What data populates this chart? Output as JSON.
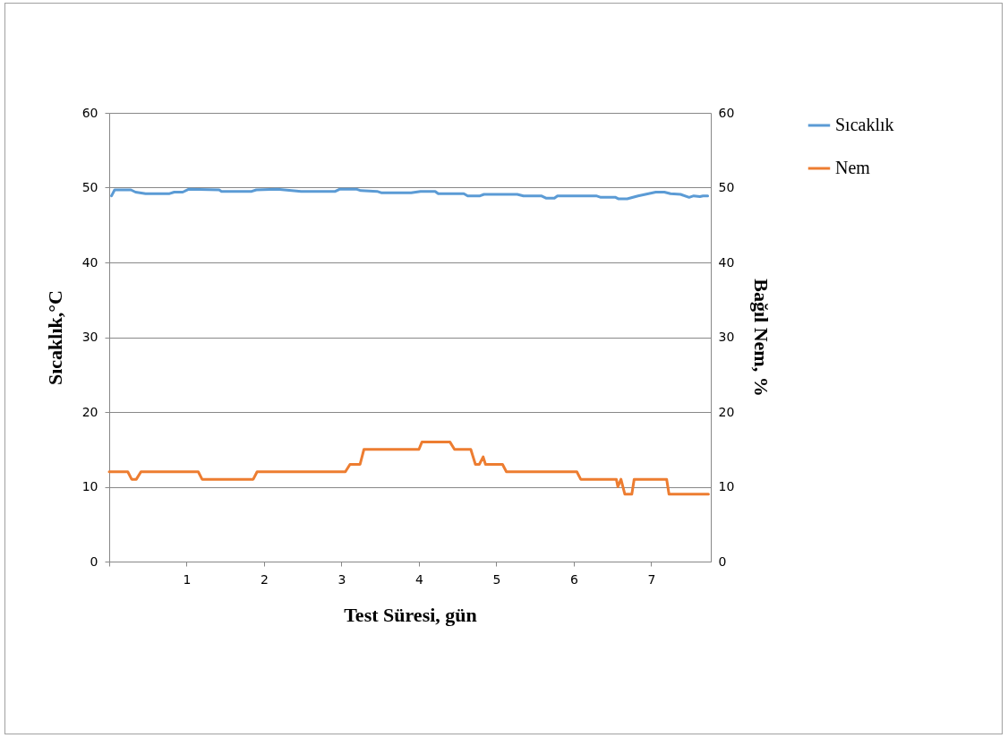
{
  "chart_data": {
    "type": "line",
    "xlabel": "Test Süresi, gün",
    "ylabel": "Sıcaklık,°C",
    "y2label": "Bağıl Nem, %",
    "xlim": [
      0,
      7.77
    ],
    "xticks": [
      {
        "value": 0,
        "label": null
      },
      1,
      2,
      3,
      4,
      5,
      6,
      7
    ],
    "ylim": [
      0,
      60
    ],
    "yticks": [
      0,
      10,
      20,
      30,
      40,
      50,
      60
    ],
    "y2lim": [
      0,
      60
    ],
    "y2ticks": [
      0,
      10,
      20,
      30,
      40,
      50,
      60
    ],
    "grid": "y",
    "legend": "right",
    "line_style": "solid",
    "marker": "none",
    "series": [
      {
        "name": "Sıcaklık",
        "color": "#5b9bd5",
        "x": [
          0.03,
          0.07,
          0.28,
          0.34,
          0.47,
          0.78,
          0.84,
          0.95,
          1.03,
          1.42,
          1.45,
          1.84,
          1.9,
          2.17,
          2.48,
          2.92,
          2.98,
          3.19,
          3.25,
          3.46,
          3.52,
          3.9,
          4.02,
          4.21,
          4.25,
          4.58,
          4.63,
          4.79,
          4.84,
          5.27,
          5.35,
          5.58,
          5.64,
          5.75,
          5.79,
          6.29,
          6.35,
          6.54,
          6.58,
          6.69,
          6.83,
          7.06,
          7.17,
          7.25,
          7.38,
          7.49,
          7.55,
          7.63,
          7.67,
          7.73
        ],
        "values": [
          48.9,
          49.7,
          49.7,
          49.4,
          49.2,
          49.2,
          49.4,
          49.4,
          49.8,
          49.7,
          49.5,
          49.5,
          49.7,
          49.8,
          49.5,
          49.5,
          49.8,
          49.8,
          49.6,
          49.5,
          49.3,
          49.3,
          49.5,
          49.5,
          49.2,
          49.2,
          48.9,
          48.9,
          49.1,
          49.1,
          48.9,
          48.9,
          48.6,
          48.6,
          48.9,
          48.9,
          48.7,
          48.7,
          48.5,
          48.5,
          48.9,
          49.4,
          49.4,
          49.2,
          49.1,
          48.7,
          48.9,
          48.8,
          48.9,
          48.9
        ]
      },
      {
        "name": "Nem",
        "color": "#ed7d31",
        "axis": "y2",
        "x": [
          0,
          0.24,
          0.29,
          0.35,
          0.41,
          1.15,
          1.2,
          1.86,
          1.91,
          3.05,
          3.11,
          3.24,
          3.29,
          4.0,
          4.04,
          4.4,
          4.46,
          4.67,
          4.73,
          4.78,
          4.83,
          4.86,
          5.08,
          5.13,
          6.04,
          6.09,
          6.55,
          6.57,
          6.61,
          6.66,
          6.75,
          6.78,
          7.2,
          7.23,
          7.74
        ],
        "values": [
          12,
          12,
          11,
          11,
          12,
          12,
          11,
          11,
          12,
          12,
          13,
          13,
          15,
          15,
          16,
          16,
          15,
          15,
          13,
          13,
          14,
          13,
          13,
          12,
          12,
          11,
          11,
          10,
          11,
          9,
          9,
          11,
          11,
          9,
          9
        ]
      }
    ]
  }
}
